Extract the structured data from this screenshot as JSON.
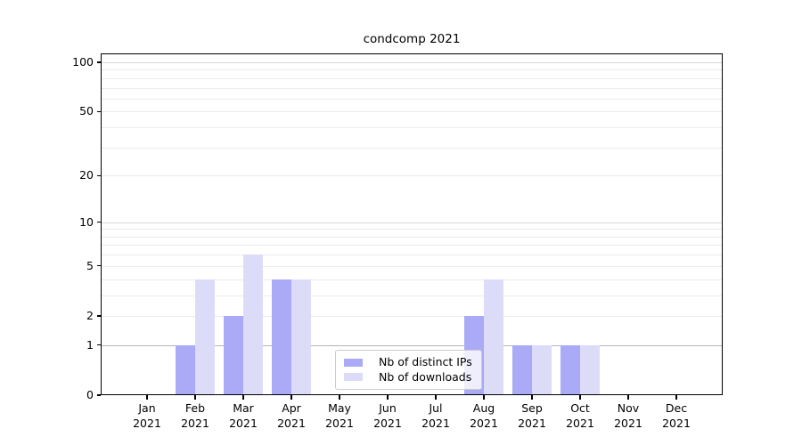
{
  "chart_data": {
    "type": "bar",
    "title": "condcomp 2021",
    "categories": [
      "Jan",
      "Feb",
      "Mar",
      "Apr",
      "May",
      "Jun",
      "Jul",
      "Aug",
      "Sep",
      "Oct",
      "Nov",
      "Dec"
    ],
    "xtick_year": "2021",
    "series": [
      {
        "name": "Nb of distinct IPs",
        "color": "#aaaaf6",
        "values": [
          0,
          1,
          2,
          4,
          0,
          0,
          0,
          2,
          1,
          1,
          0,
          0
        ]
      },
      {
        "name": "Nb of downloads",
        "color": "#dcdcf9",
        "values": [
          0,
          4,
          6,
          4,
          0,
          0,
          0,
          4,
          1,
          1,
          0,
          0
        ]
      }
    ],
    "yscale": "log1p",
    "ylim": [
      0,
      113.3
    ],
    "yticks": [
      0,
      1,
      2,
      5,
      10,
      20,
      50,
      100
    ],
    "grid": {
      "major_values": [
        1
      ],
      "mid_values": [
        10,
        100
      ],
      "minor_values": [
        2,
        3,
        4,
        5,
        6,
        7,
        8,
        9,
        20,
        30,
        40,
        50,
        60,
        70,
        80,
        90
      ],
      "major_color": "#b3b3b3",
      "mid_color": "#d9d9d9",
      "minor_color": "#ebebeb"
    },
    "legend_position": "lower center",
    "grid_on": true
  }
}
